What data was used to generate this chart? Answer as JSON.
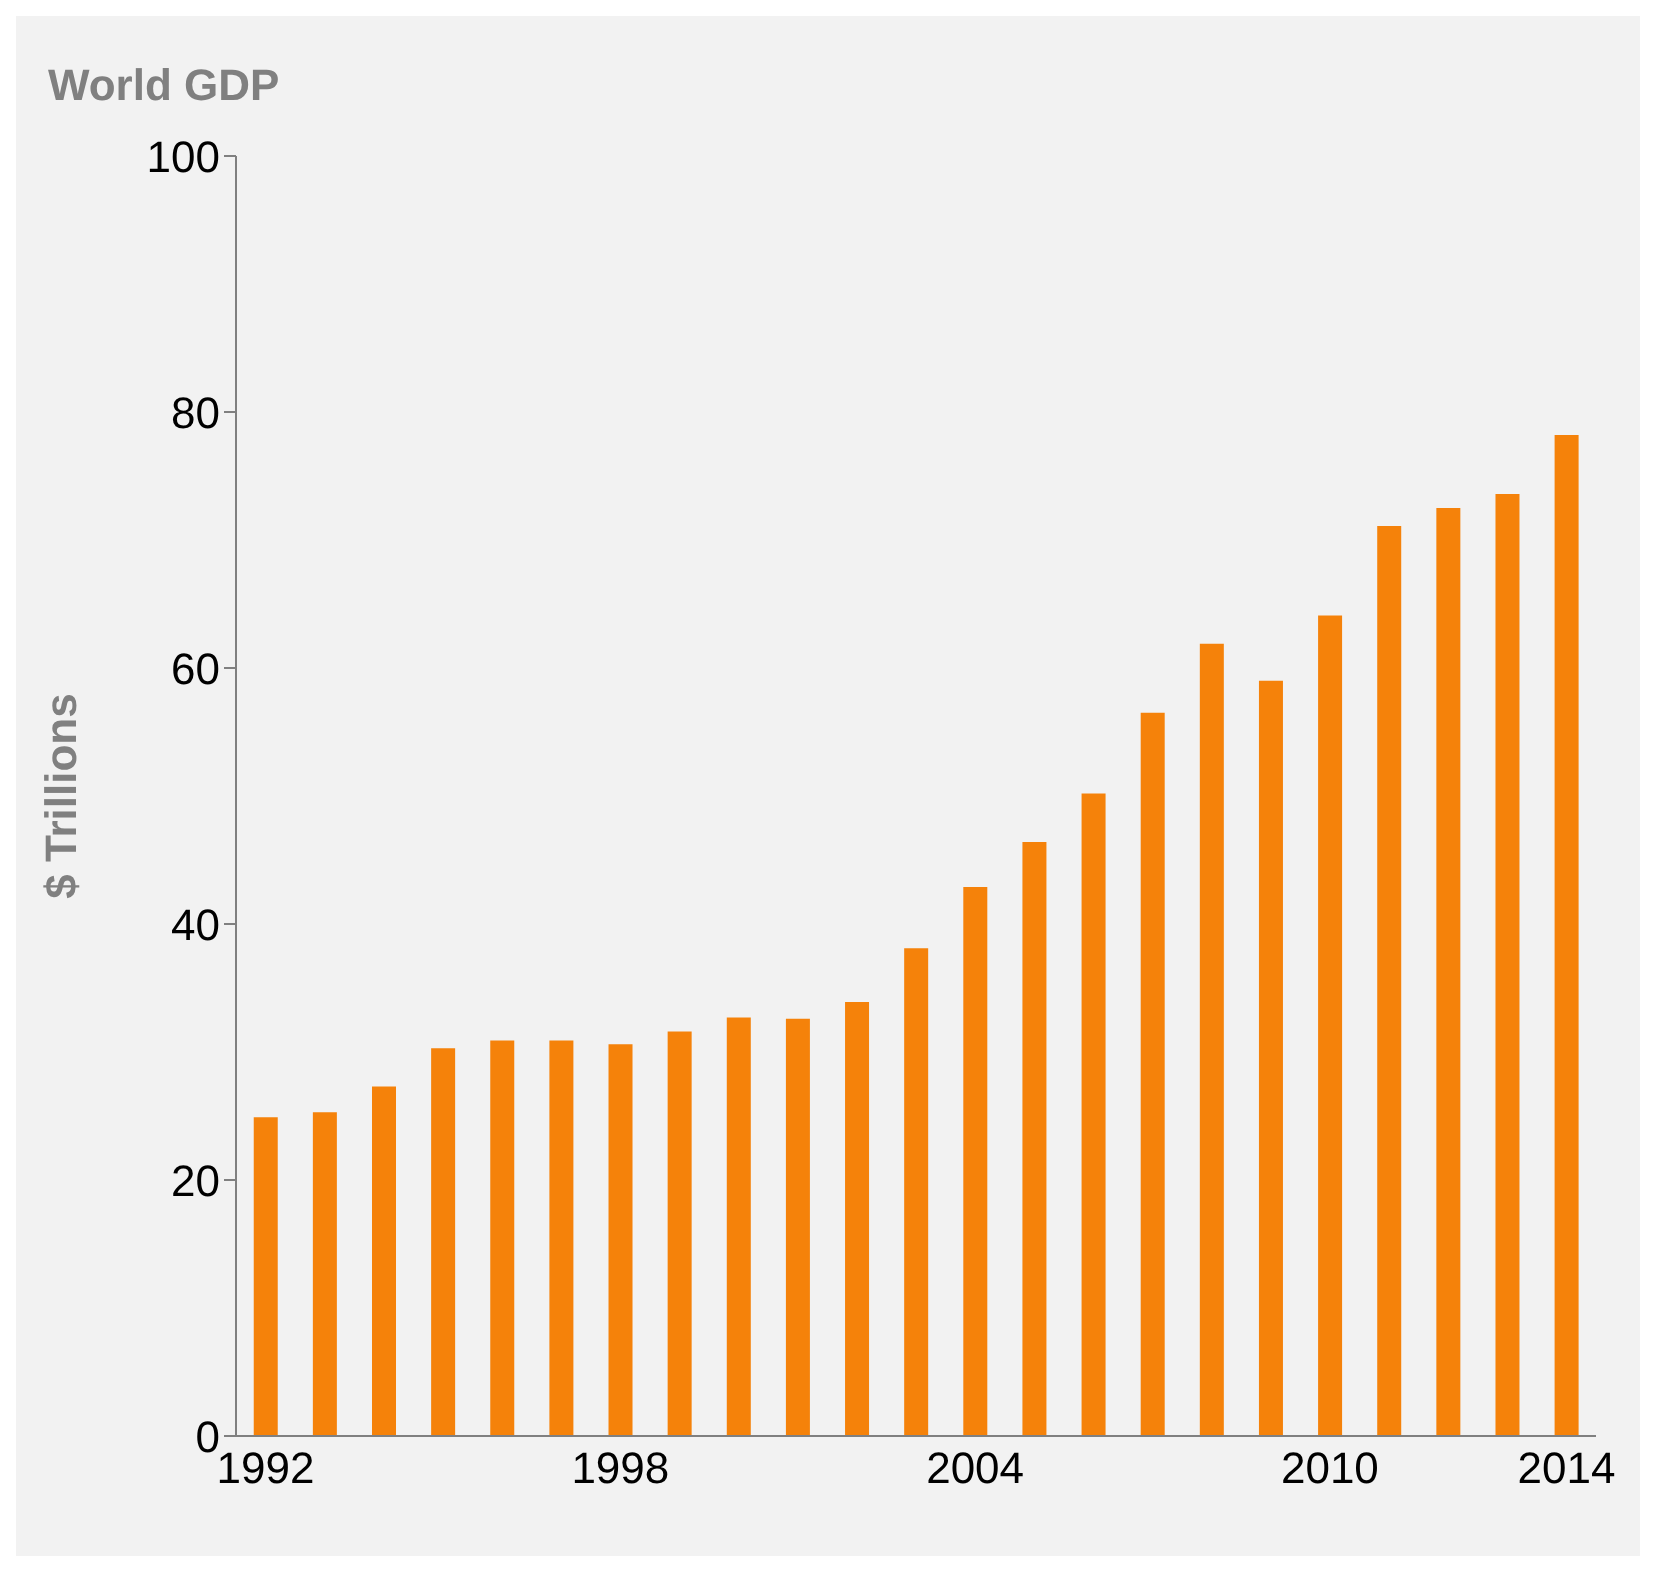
{
  "chart_data": {
    "type": "bar",
    "title": "World GDP",
    "ylabel": "$ Trillions",
    "categories": [
      "1992",
      null,
      null,
      null,
      null,
      null,
      "1998",
      null,
      null,
      null,
      null,
      null,
      "2004",
      null,
      null,
      null,
      null,
      null,
      "2010",
      null,
      null,
      null,
      "2014"
    ],
    "values": [
      24.9,
      25.3,
      27.3,
      30.3,
      30.9,
      30.9,
      30.6,
      31.6,
      32.7,
      32.6,
      33.9,
      38.1,
      42.9,
      46.4,
      50.2,
      56.5,
      61.9,
      59.0,
      64.1,
      71.1,
      72.5,
      73.6,
      78.2
    ],
    "color": "#f5820a",
    "ylim": [
      0,
      100
    ],
    "yticks": [
      0,
      20,
      40,
      60,
      80,
      100
    ],
    "grid": false,
    "legend": false
  }
}
